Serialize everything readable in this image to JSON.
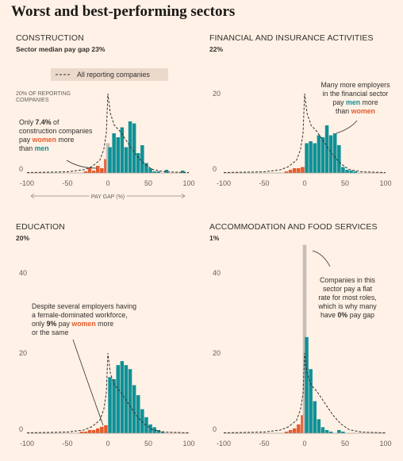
{
  "title": "Worst and best-performing sectors",
  "legend": {
    "label": "All reporting companies"
  },
  "axis": {
    "xlabel": "PAY GAP (%)",
    "x_ticks": [
      "-100",
      "-50",
      "0",
      "50",
      "100"
    ],
    "y_unit_label_line1": "20% OF REPORTING",
    "y_unit_label_line2": "COMPANIES"
  },
  "colors": {
    "negative": "#e55b2d",
    "positive": "#0f9196",
    "flat": "#c7bdb7",
    "reference": "#33302e",
    "background": "#fff1e5"
  },
  "chart_data": [
    {
      "type": "bar",
      "title": "CONSTRUCTION",
      "subtitle": "Sector median pay gap 23%",
      "xlabel": "PAY GAP (%)",
      "xlim": [
        -100,
        100
      ],
      "ylim": [
        0,
        20
      ],
      "y_ticks": [
        "20",
        "0"
      ],
      "bins": [
        {
          "x": -27.5,
          "v": 0.4
        },
        {
          "x": -22.5,
          "v": 1.2
        },
        {
          "x": -17.5,
          "v": 0.6
        },
        {
          "x": -12.5,
          "v": 1.8
        },
        {
          "x": -7.5,
          "v": 1.2
        },
        {
          "x": -2.5,
          "v": 3.5
        },
        {
          "x": 0,
          "v": 7.5,
          "flat": true
        },
        {
          "x": 2.5,
          "v": 6.5
        },
        {
          "x": 7.5,
          "v": 10
        },
        {
          "x": 12.5,
          "v": 9
        },
        {
          "x": 17.5,
          "v": 11.5
        },
        {
          "x": 22.5,
          "v": 6.5
        },
        {
          "x": 27.5,
          "v": 13
        },
        {
          "x": 32.5,
          "v": 12.5
        },
        {
          "x": 37.5,
          "v": 5
        },
        {
          "x": 42.5,
          "v": 7
        },
        {
          "x": 47.5,
          "v": 2.5
        },
        {
          "x": 52.5,
          "v": 1.2
        },
        {
          "x": 57.5,
          "v": 0.4
        },
        {
          "x": 62.5,
          "v": 0.4
        },
        {
          "x": 72.5,
          "v": 0.8
        },
        {
          "x": 92.5,
          "v": 0.6
        }
      ],
      "annotations": [
        {
          "lines": [
            [
              {
                "t": "Only "
              },
              {
                "t": "7.4%",
                "s": "b"
              },
              {
                "t": " of"
              }
            ],
            [
              {
                "t": "construction companies"
              }
            ],
            [
              {
                "t": "pay "
              },
              {
                "t": "women",
                "s": "pink"
              },
              {
                "t": " more"
              }
            ],
            [
              {
                "t": "than "
              },
              {
                "t": "men",
                "s": "teal"
              }
            ]
          ]
        }
      ]
    },
    {
      "type": "bar",
      "title": "FINANCIAL AND INSURANCE ACTIVITIES",
      "subtitle": "22%",
      "xlim": [
        -100,
        100
      ],
      "ylim": [
        0,
        20
      ],
      "y_ticks": [
        "20",
        "0"
      ],
      "bins": [
        {
          "x": -22.5,
          "v": 0.4
        },
        {
          "x": -17.5,
          "v": 0.8
        },
        {
          "x": -12.5,
          "v": 1.2
        },
        {
          "x": -7.5,
          "v": 1.2
        },
        {
          "x": -2.5,
          "v": 1.5
        },
        {
          "x": 2.5,
          "v": 7.5
        },
        {
          "x": 7.5,
          "v": 8
        },
        {
          "x": 12.5,
          "v": 7.5
        },
        {
          "x": 17.5,
          "v": 9.5
        },
        {
          "x": 22.5,
          "v": 9
        },
        {
          "x": 27.5,
          "v": 12
        },
        {
          "x": 32.5,
          "v": 9.5
        },
        {
          "x": 37.5,
          "v": 10
        },
        {
          "x": 42.5,
          "v": 7
        },
        {
          "x": 47.5,
          "v": 1.5
        },
        {
          "x": 52.5,
          "v": 0.8
        },
        {
          "x": 57.5,
          "v": 0.6
        },
        {
          "x": 62.5,
          "v": 0.4
        }
      ],
      "annotations": [
        {
          "lines": [
            [
              {
                "t": "Many more employers"
              }
            ],
            [
              {
                "t": "in the financial sector"
              }
            ],
            [
              {
                "t": "pay "
              },
              {
                "t": "men",
                "s": "teal"
              },
              {
                "t": " more"
              }
            ],
            [
              {
                "t": "than "
              },
              {
                "t": "women",
                "s": "pink"
              }
            ]
          ]
        }
      ]
    },
    {
      "type": "bar",
      "title": "EDUCATION",
      "subtitle": "20%",
      "xlim": [
        -100,
        100
      ],
      "ylim": [
        0,
        40
      ],
      "y_ticks": [
        "40",
        "20",
        "0"
      ],
      "bins": [
        {
          "x": -32.5,
          "v": 0.4
        },
        {
          "x": -27.5,
          "v": 0.4
        },
        {
          "x": -22.5,
          "v": 0.8
        },
        {
          "x": -17.5,
          "v": 0.8
        },
        {
          "x": -12.5,
          "v": 1.2
        },
        {
          "x": -7.5,
          "v": 1.6
        },
        {
          "x": -2.5,
          "v": 2
        },
        {
          "x": 2.5,
          "v": 14
        },
        {
          "x": 7.5,
          "v": 13.5
        },
        {
          "x": 12.5,
          "v": 17
        },
        {
          "x": 17.5,
          "v": 18
        },
        {
          "x": 22.5,
          "v": 17
        },
        {
          "x": 27.5,
          "v": 16
        },
        {
          "x": 32.5,
          "v": 12
        },
        {
          "x": 37.5,
          "v": 9.5
        },
        {
          "x": 42.5,
          "v": 6
        },
        {
          "x": 47.5,
          "v": 4
        },
        {
          "x": 52.5,
          "v": 2.2
        },
        {
          "x": 57.5,
          "v": 1.5
        },
        {
          "x": 62.5,
          "v": 0.8
        },
        {
          "x": 67.5,
          "v": 0.4
        }
      ],
      "annotations": [
        {
          "lines": [
            [
              {
                "t": "Despite several employers having"
              }
            ],
            [
              {
                "t": "a female-dominated workforce,"
              }
            ],
            [
              {
                "t": "only "
              },
              {
                "t": "9%",
                "s": "b"
              },
              {
                "t": " pay "
              },
              {
                "t": "women",
                "s": "pink"
              },
              {
                "t": " more"
              }
            ],
            [
              {
                "t": "or the same"
              }
            ]
          ]
        }
      ]
    },
    {
      "type": "bar",
      "title": "ACCOMMODATION AND FOOD SERVICES",
      "subtitle": "1%",
      "xlim": [
        -100,
        100
      ],
      "ylim": [
        0,
        40
      ],
      "y_ticks": [
        "40",
        "20",
        "0"
      ],
      "bins": [
        {
          "x": -22.5,
          "v": 0.4
        },
        {
          "x": -17.5,
          "v": 0.8
        },
        {
          "x": -12.5,
          "v": 1.2
        },
        {
          "x": -7.5,
          "v": 2.2
        },
        {
          "x": -2.5,
          "v": 4.5
        },
        {
          "x": 0,
          "v": 47,
          "flat": true
        },
        {
          "x": 2.5,
          "v": 24
        },
        {
          "x": 7.5,
          "v": 16
        },
        {
          "x": 12.5,
          "v": 8
        },
        {
          "x": 17.5,
          "v": 3.5
        },
        {
          "x": 22.5,
          "v": 1.5
        },
        {
          "x": 27.5,
          "v": 0.8
        },
        {
          "x": 32.5,
          "v": 0.4
        },
        {
          "x": 42.5,
          "v": 0.8
        },
        {
          "x": 47.5,
          "v": 0.4
        }
      ],
      "annotations": [
        {
          "lines": [
            [
              {
                "t": "Companies in this"
              }
            ],
            [
              {
                "t": "sector pay a flat"
              }
            ],
            [
              {
                "t": "rate for most roles,"
              }
            ],
            [
              {
                "t": "which is why many"
              }
            ],
            [
              {
                "t": "have "
              },
              {
                "t": "0%",
                "s": "b"
              },
              {
                "t": " pay gap"
              }
            ]
          ]
        }
      ]
    }
  ],
  "reference_curve": {
    "name": "All reporting companies",
    "x": [
      -100,
      -50,
      -30,
      -20,
      -10,
      -5,
      -2,
      0,
      3,
      8,
      15,
      25,
      35,
      45,
      55,
      70,
      100
    ],
    "y": [
      0.1,
      0.3,
      0.8,
      1.6,
      3.2,
      6,
      10,
      20,
      15,
      12,
      10.5,
      7.5,
      4.5,
      2.3,
      0.9,
      0.3,
      0.1
    ]
  }
}
